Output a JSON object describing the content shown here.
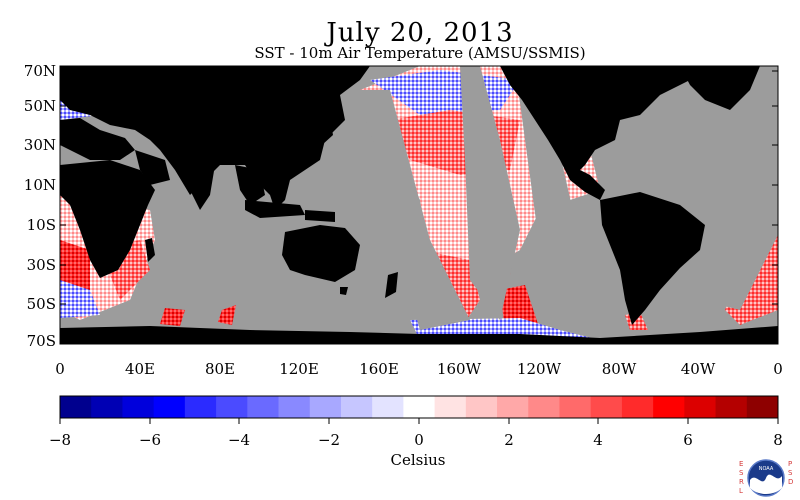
{
  "header": {
    "title": "July 20, 2013",
    "subtitle": "SST - 10m Air Temperature (AMSU/SSMIS)"
  },
  "map": {
    "lat_labels": [
      "70N",
      "50N",
      "30N",
      "10N",
      "10S",
      "30S",
      "50S",
      "70S"
    ],
    "lon_labels": [
      "0",
      "40E",
      "80E",
      "120E",
      "160E",
      "160W",
      "120W",
      "80W",
      "40W",
      "0"
    ],
    "land_color": "#000000",
    "no_data_color": "#9c9c9c"
  },
  "colorbar": {
    "label": "Celsius",
    "tick_labels": [
      "−8",
      "−6",
      "−4",
      "−2",
      "0",
      "2",
      "4",
      "6",
      "8"
    ],
    "colors": [
      "#00008e",
      "#0000b4",
      "#0000dc",
      "#0000ff",
      "#2b2bff",
      "#4b4bff",
      "#6a6aff",
      "#8989ff",
      "#a8a8ff",
      "#c6c6ff",
      "#e3e3ff",
      "#ffffff",
      "#ffe3e3",
      "#ffc6c6",
      "#ffa8a8",
      "#ff8989",
      "#ff6a6a",
      "#ff4b4b",
      "#ff2b2b",
      "#ff0000",
      "#dc0000",
      "#b40000",
      "#8e0000"
    ]
  },
  "logo": {
    "left_text": "ESRL",
    "right_text": "PSD",
    "center_text": "NOAA"
  }
}
